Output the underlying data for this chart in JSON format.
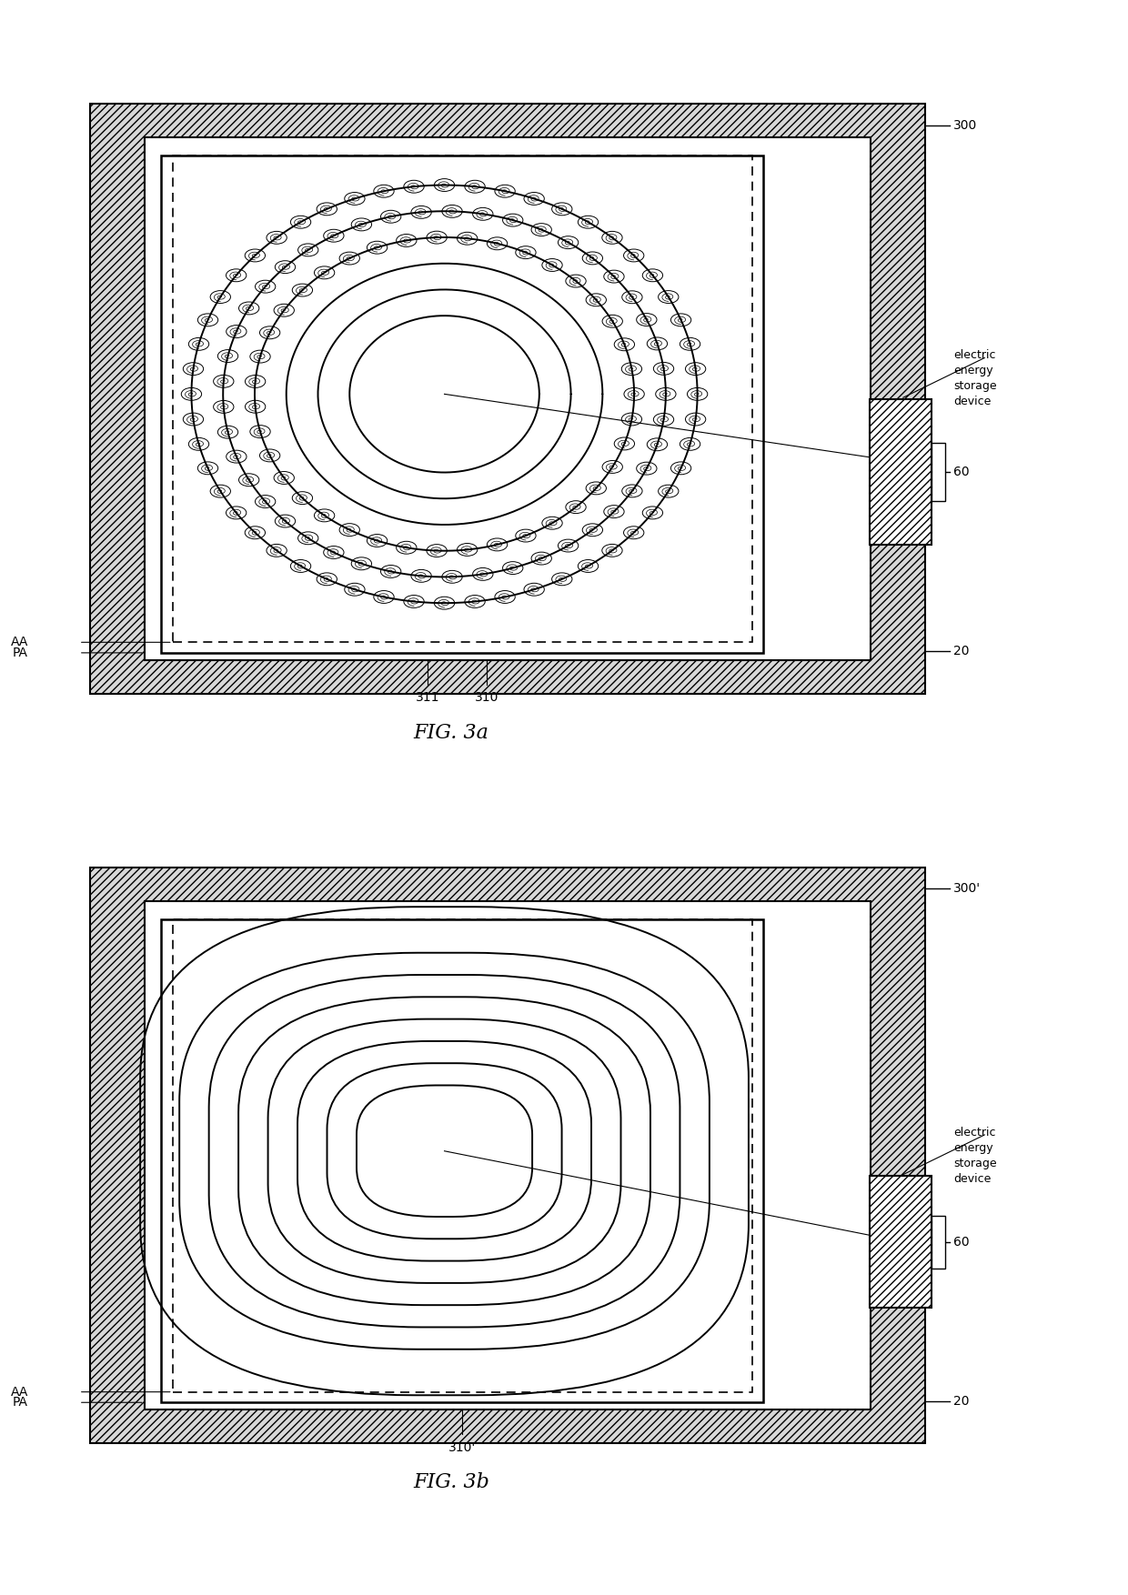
{
  "bg_color": "#ffffff",
  "fig_width": 12.4,
  "fig_height": 17.54,
  "fig3a_label": "FIG. 3a",
  "fig3b_label": "FIG. 3b",
  "label_300": "300",
  "label_300p": "300'",
  "label_60": "60",
  "label_20": "20",
  "label_AA": "AA",
  "label_PA": "PA",
  "label_310": "310",
  "label_311": "311",
  "label_310p": "310'",
  "label_device": "electric\nenergy\nstorage\ndevice",
  "font_size_label": 10,
  "font_size_fig": 16,
  "hatch_density": "////"
}
